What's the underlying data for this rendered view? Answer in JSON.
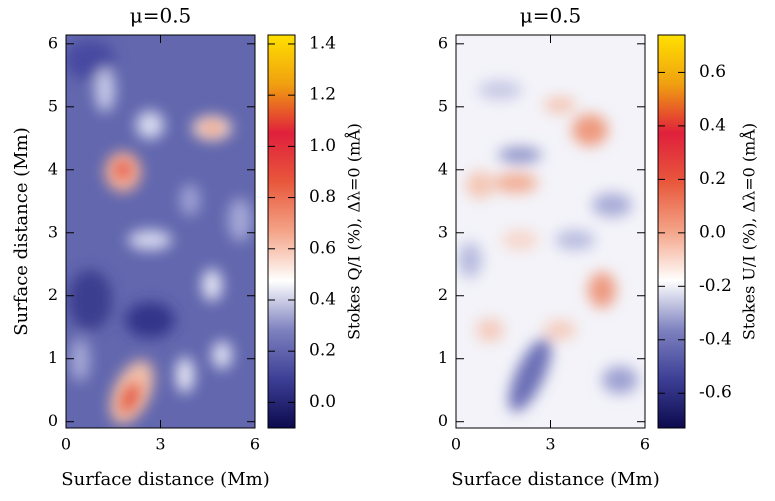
{
  "chart_data": [
    {
      "type": "heatmap",
      "title": "μ=0.5",
      "xlabel": "Surface distance (Mm)",
      "ylabel": "Surface distance (Mm)",
      "xlim": [
        0,
        6
      ],
      "xticks": [
        0,
        3,
        6
      ],
      "ylim": [
        -0.1,
        6.14
      ],
      "yticks": [
        0,
        1,
        2,
        3,
        4,
        5,
        6
      ],
      "colorbar": {
        "label": "Stokes Q/I (%), Δλ=0 (mÅ)",
        "lim": [
          -0.1,
          1.435
        ],
        "ticks": [
          {
            "value": 0,
            "label": "0.0"
          },
          0.2,
          0.4,
          0.6,
          0.8,
          {
            "value": 1,
            "label": "1.0"
          },
          1.2,
          1.4
        ],
        "colormap": [
          "#0c0a4e",
          "#3d3f96",
          "#7e82bf",
          "#ffffff",
          "#f4a488",
          "#e8583c",
          "#e0203c",
          "#f0a010",
          "#ffe000"
        ]
      }
    },
    {
      "type": "heatmap",
      "title": "μ=0.5",
      "xlabel": "Surface distance (Mm)",
      "xlim": [
        0,
        6
      ],
      "xticks": [
        0,
        3,
        6
      ],
      "ylim": [
        -0.1,
        6.14
      ],
      "yticks": [
        0,
        1,
        2,
        3,
        4,
        5,
        6
      ],
      "colorbar": {
        "label": "Stokes U/I (%), Δλ=0 (mÅ)",
        "lim": [
          -0.73,
          0.74
        ],
        "ticks": [
          -0.6,
          -0.4,
          -0.2,
          {
            "value": 0,
            "label": "0.0"
          },
          0.2,
          0.4,
          0.6
        ],
        "colormap": [
          "#0c0a4e",
          "#3d3f96",
          "#7e82bf",
          "#ffffff",
          "#f4a488",
          "#e8583c",
          "#e0203c",
          "#f0a010",
          "#ffe000"
        ]
      }
    }
  ]
}
